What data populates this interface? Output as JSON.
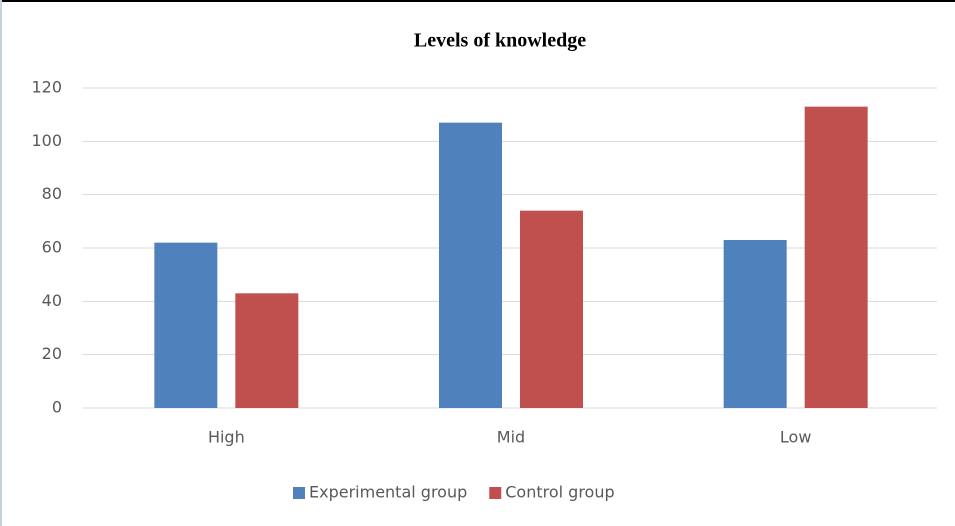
{
  "chart_data": {
    "type": "bar",
    "title": "Levels of knowledge",
    "categories": [
      "High",
      "Mid",
      "Low"
    ],
    "series": [
      {
        "name": "Experimental group",
        "color": "#4f81bd",
        "values": [
          62,
          107,
          63
        ]
      },
      {
        "name": "Control group",
        "color": "#c0504d",
        "values": [
          43,
          74,
          113
        ]
      }
    ],
    "ylim": [
      0,
      120
    ],
    "yticks": [
      0,
      20,
      40,
      60,
      80,
      100,
      120
    ],
    "grid": true,
    "legend": "bottom"
  }
}
